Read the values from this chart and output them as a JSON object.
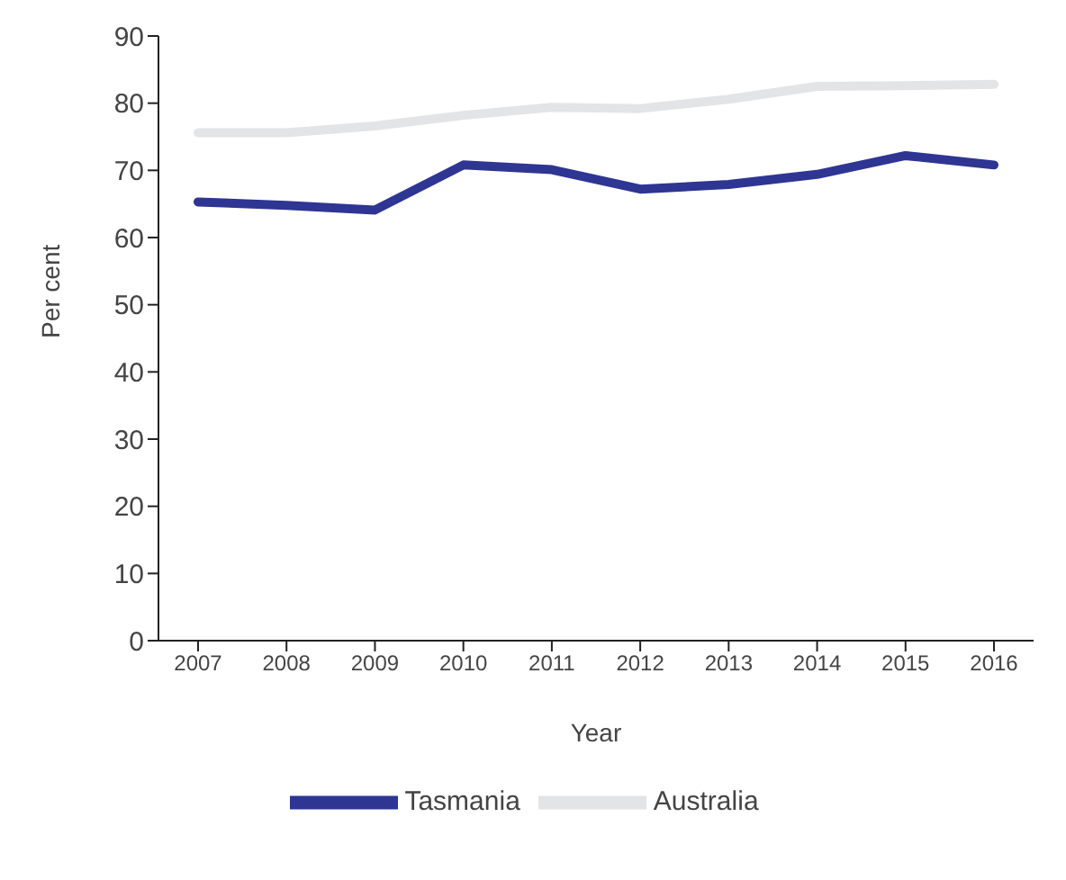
{
  "chart_data": {
    "type": "line",
    "xlabel": "Year",
    "ylabel": "Per cent",
    "categories": [
      "2007",
      "2008",
      "2009",
      "2010",
      "2011",
      "2012",
      "2013",
      "2014",
      "2015",
      "2016"
    ],
    "series": [
      {
        "name": "Tasmania",
        "color": "#2e3592",
        "values": [
          65.3,
          64.8,
          64.1,
          70.8,
          70.1,
          67.2,
          67.9,
          69.4,
          72.2,
          70.8
        ]
      },
      {
        "name": "Australia",
        "color": "#e3e4e5",
        "values": [
          75.6,
          75.6,
          76.6,
          78.2,
          79.4,
          79.2,
          80.6,
          82.5,
          82.6,
          82.8
        ]
      }
    ],
    "ylim": [
      0,
      90
    ],
    "yticks": [
      0,
      10,
      20,
      30,
      40,
      50,
      60,
      70,
      80,
      90
    ],
    "grid": false,
    "legend": "bottom",
    "marker": "none",
    "line_style": "solid"
  }
}
